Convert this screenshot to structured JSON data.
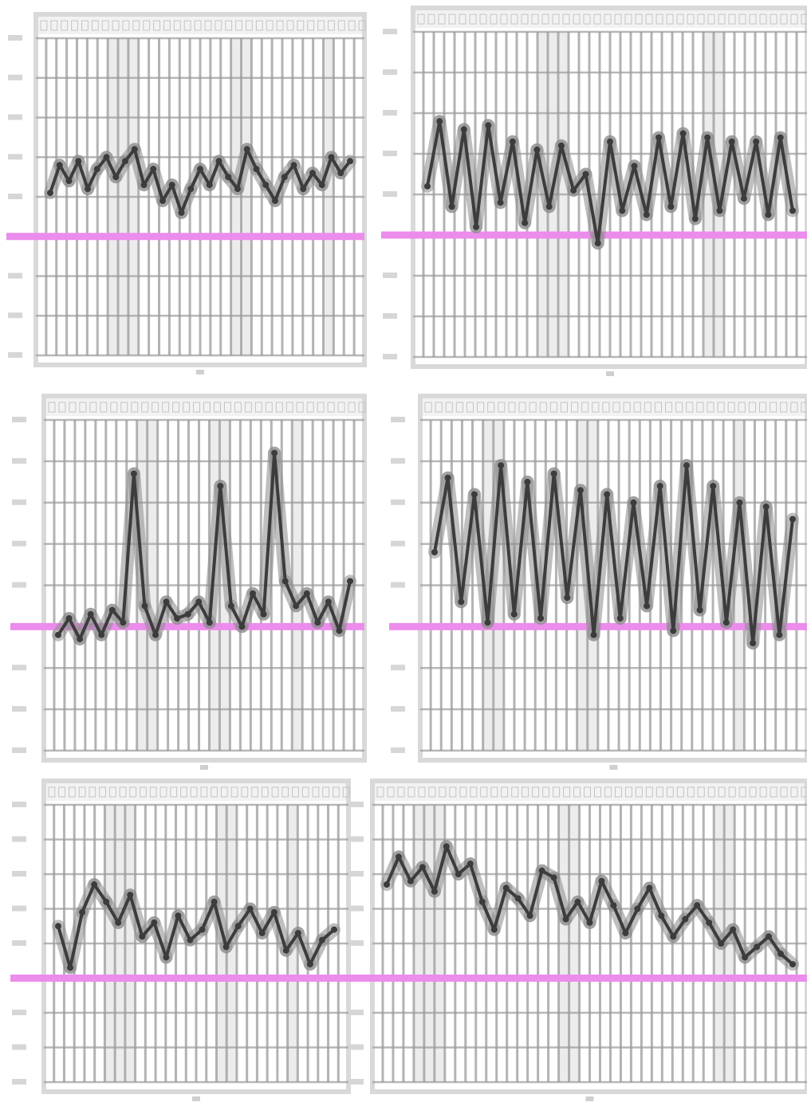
{
  "figure": {
    "background": "#ffffff"
  },
  "style": {
    "frame_color": "#d9d9d9",
    "grid_color": "#9a9a9a",
    "stripe_color": "#ececec",
    "line_color": "#3c3c3c",
    "band_color": "#8c8c8c",
    "reference_color": "#ec8cec"
  },
  "chart_data": [
    {
      "type": "line",
      "panel": "top-left",
      "ylim": [
        0,
        8
      ],
      "reference_y": 3,
      "values": [
        4.1,
        4.8,
        4.4,
        4.9,
        4.2,
        4.7,
        5.0,
        4.5,
        4.9,
        5.2,
        4.3,
        4.7,
        3.9,
        4.3,
        3.6,
        4.2,
        4.7,
        4.3,
        4.9,
        4.5,
        4.2,
        5.2,
        4.7,
        4.3,
        3.9,
        4.5,
        4.8,
        4.2,
        4.6,
        4.3,
        5.0,
        4.6,
        4.9
      ]
    },
    {
      "type": "line",
      "panel": "top-right",
      "ylim": [
        0,
        8
      ],
      "reference_y": 3,
      "values": [
        4.2,
        5.8,
        3.7,
        5.6,
        3.2,
        5.7,
        3.8,
        5.3,
        3.3,
        5.1,
        3.7,
        5.2,
        4.1,
        4.5,
        2.8,
        5.3,
        3.6,
        4.7,
        3.5,
        5.4,
        3.7,
        5.5,
        3.4,
        5.4,
        3.6,
        5.3,
        3.9,
        5.3,
        3.5,
        5.4,
        3.6
      ]
    },
    {
      "type": "line",
      "panel": "middle-left",
      "ylim": [
        0,
        8
      ],
      "reference_y": 3,
      "values": [
        2.8,
        3.2,
        2.7,
        3.3,
        2.8,
        3.4,
        3.1,
        6.7,
        3.5,
        2.8,
        3.6,
        3.2,
        3.3,
        3.6,
        3.1,
        6.4,
        3.5,
        3.0,
        3.8,
        3.3,
        7.2,
        4.1,
        3.5,
        3.8,
        3.1,
        3.6,
        2.9,
        4.1
      ]
    },
    {
      "type": "line",
      "panel": "middle-right",
      "ylim": [
        0,
        8
      ],
      "reference_y": 3,
      "values": [
        4.8,
        6.6,
        3.6,
        6.2,
        3.1,
        6.9,
        3.3,
        6.5,
        3.2,
        6.7,
        3.7,
        6.3,
        2.8,
        6.2,
        3.2,
        6.0,
        3.5,
        6.4,
        2.9,
        6.9,
        3.4,
        6.4,
        3.1,
        6.0,
        2.6,
        5.9,
        2.8,
        5.6
      ]
    },
    {
      "type": "line",
      "panel": "bottom-left",
      "ylim": [
        0,
        8
      ],
      "reference_y": 3,
      "values": [
        4.5,
        3.3,
        4.9,
        5.7,
        5.2,
        4.6,
        5.4,
        4.2,
        4.6,
        3.6,
        4.8,
        4.1,
        4.4,
        5.2,
        3.9,
        4.5,
        5.0,
        4.3,
        4.9,
        3.8,
        4.3,
        3.4,
        4.1,
        4.4
      ]
    },
    {
      "type": "line",
      "panel": "bottom-right",
      "ylim": [
        0,
        8
      ],
      "reference_y": 3,
      "values": [
        5.7,
        6.5,
        5.8,
        6.2,
        5.5,
        6.8,
        6.0,
        6.3,
        5.2,
        4.4,
        5.6,
        5.3,
        4.8,
        6.1,
        5.9,
        4.7,
        5.2,
        4.6,
        5.8,
        5.1,
        4.3,
        5.0,
        5.6,
        4.8,
        4.2,
        4.7,
        5.1,
        4.6,
        4.0,
        4.4,
        3.6,
        3.9,
        4.2,
        3.7,
        3.4
      ]
    }
  ]
}
